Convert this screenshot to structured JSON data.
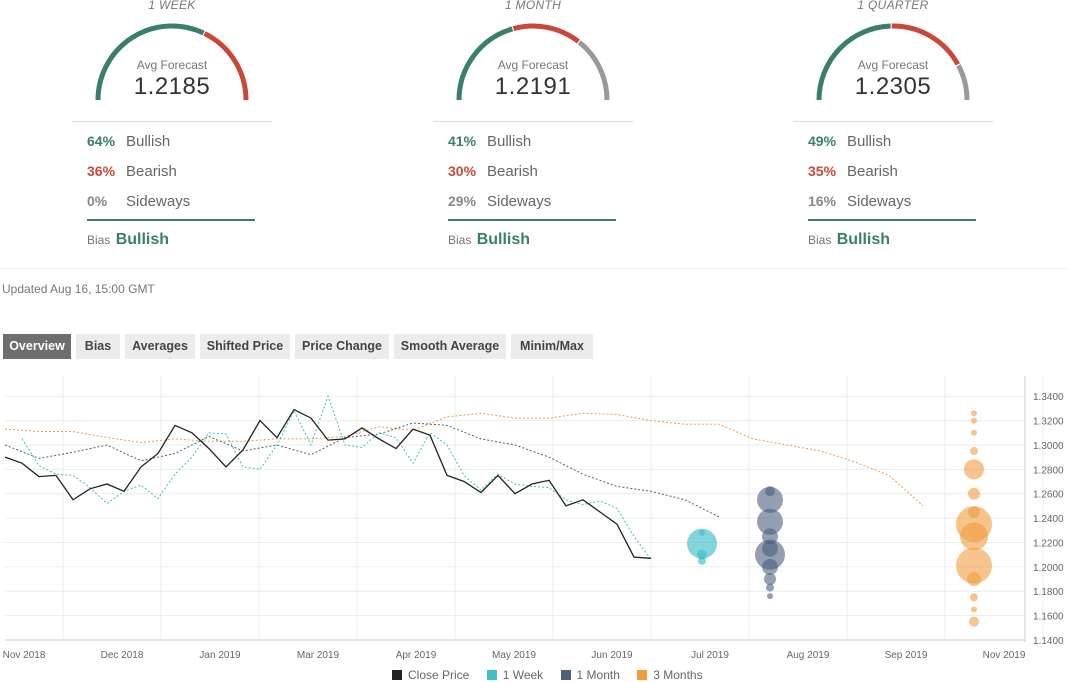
{
  "colors": {
    "bullish": "#3a7f6d",
    "bearish": "#c8493a",
    "sideways": "#999999",
    "close_price": "#222222",
    "week": "#3fbfc6",
    "month": "#4d5f7d",
    "quarter": "#f09d3f"
  },
  "forecasts": [
    {
      "period": "1 WEEK",
      "avg_label": "Avg Forecast",
      "avg_value": "1.2185",
      "gauge": [
        64,
        36,
        0
      ],
      "bullish_pct": "64%",
      "bullish_label": "Bullish",
      "bearish_pct": "36%",
      "bearish_label": "Bearish",
      "sideways_pct": "0%",
      "sideways_label": "Sideways",
      "bias_label": "Bias",
      "bias_value": "Bullish"
    },
    {
      "period": "1 MONTH",
      "avg_label": "Avg Forecast",
      "avg_value": "1.2191",
      "gauge": [
        41,
        30,
        29
      ],
      "bullish_pct": "41%",
      "bullish_label": "Bullish",
      "bearish_pct": "30%",
      "bearish_label": "Bearish",
      "sideways_pct": "29%",
      "sideways_label": "Sideways",
      "bias_label": "Bias",
      "bias_value": "Bullish"
    },
    {
      "period": "1 QUARTER",
      "avg_label": "Avg Forecast",
      "avg_value": "1.2305",
      "gauge": [
        49,
        35,
        16
      ],
      "bullish_pct": "49%",
      "bullish_label": "Bullish",
      "bearish_pct": "35%",
      "bearish_label": "Bearish",
      "sideways_pct": "16%",
      "sideways_label": "Sideways",
      "bias_label": "Bias",
      "bias_value": "Bullish"
    }
  ],
  "updated": "Updated Aug 16, 15:00 GMT",
  "tabs": [
    {
      "label": "Overview",
      "active": true
    },
    {
      "label": "Bias",
      "active": false
    },
    {
      "label": "Averages",
      "active": false
    },
    {
      "label": "Shifted Price",
      "active": false
    },
    {
      "label": "Price Change",
      "active": false
    },
    {
      "label": "Smooth Average",
      "active": false
    },
    {
      "label": "Minim/Max",
      "active": false
    }
  ],
  "chart_data": {
    "type": "line",
    "x_ticks": [
      "Nov 2018",
      "Dec 2018",
      "Jan 2019",
      "Mar 2019",
      "Apr 2019",
      "May 2019",
      "Jun 2019",
      "Jul 2019",
      "Aug 2019",
      "Sep 2019",
      "Nov 2019"
    ],
    "y_ticks": [
      "1.3400",
      "1.3200",
      "1.3000",
      "1.2800",
      "1.2600",
      "1.2400",
      "1.2200",
      "1.2000",
      "1.1800",
      "1.1600",
      "1.1400"
    ],
    "ylim": [
      1.14,
      1.35
    ],
    "grid": true,
    "legend_position": "bottom",
    "series": [
      {
        "name": "Close Price",
        "style": "solid",
        "x": [
          0,
          1,
          2,
          3,
          4,
          5,
          6,
          7,
          8,
          9,
          10,
          11,
          12,
          13,
          14,
          15,
          16,
          17,
          18,
          19,
          20,
          21,
          22,
          23,
          24,
          25,
          26,
          27,
          28,
          29,
          30,
          31,
          32,
          33,
          34,
          35,
          36,
          37,
          38
        ],
        "y": [
          1.29,
          1.285,
          1.274,
          1.275,
          1.255,
          1.264,
          1.268,
          1.262,
          1.282,
          1.293,
          1.316,
          1.31,
          1.297,
          1.282,
          1.296,
          1.32,
          1.306,
          1.329,
          1.322,
          1.304,
          1.305,
          1.314,
          1.305,
          1.297,
          1.313,
          1.308,
          1.275,
          1.27,
          1.261,
          1.275,
          1.26,
          1.268,
          1.271,
          1.25,
          1.255,
          1.245,
          1.235,
          1.208,
          1.207
        ]
      },
      {
        "name": "1 Week",
        "style": "dashed",
        "x": [
          1,
          2,
          3,
          4,
          5,
          6,
          7,
          8,
          9,
          10,
          11,
          12,
          13,
          14,
          15,
          16,
          17,
          18,
          19,
          20,
          21,
          22,
          23,
          24,
          25,
          26,
          27,
          28,
          29,
          30,
          31,
          32,
          33,
          34,
          35,
          36,
          37,
          38
        ],
        "y": [
          1.305,
          1.283,
          1.276,
          1.275,
          1.265,
          1.252,
          1.262,
          1.267,
          1.256,
          1.276,
          1.29,
          1.31,
          1.309,
          1.282,
          1.28,
          1.3,
          1.328,
          1.3,
          1.34,
          1.3,
          1.298,
          1.31,
          1.306,
          1.285,
          1.31,
          1.3,
          1.275,
          1.263,
          1.276,
          1.268,
          1.266,
          1.265,
          1.255,
          1.251,
          1.254,
          1.248,
          1.225,
          1.206
        ]
      },
      {
        "name": "1 Month",
        "style": "dashed",
        "x": [
          0,
          2,
          4,
          6,
          8,
          10,
          12,
          14,
          16,
          18,
          20,
          22,
          24,
          26,
          28,
          30,
          32,
          34,
          36,
          38,
          40,
          42
        ],
        "y": [
          1.3,
          1.289,
          1.294,
          1.3,
          1.287,
          1.293,
          1.307,
          1.295,
          1.3,
          1.292,
          1.306,
          1.309,
          1.318,
          1.316,
          1.305,
          1.3,
          1.29,
          1.276,
          1.266,
          1.262,
          1.255,
          1.241
        ]
      },
      {
        "name": "3 Months",
        "style": "dashed",
        "x": [
          0,
          2,
          4,
          6,
          8,
          10,
          12,
          14,
          16,
          18,
          20,
          22,
          24,
          26,
          28,
          30,
          32,
          34,
          36,
          38,
          40,
          42,
          44,
          46,
          48,
          50,
          52,
          54
        ],
        "y": [
          1.313,
          1.311,
          1.311,
          1.306,
          1.302,
          1.305,
          1.303,
          1.303,
          1.305,
          1.305,
          1.307,
          1.315,
          1.312,
          1.323,
          1.326,
          1.322,
          1.322,
          1.326,
          1.325,
          1.32,
          1.317,
          1.317,
          1.305,
          1.3,
          1.295,
          1.286,
          1.275,
          1.25
        ]
      }
    ],
    "forecast_points": [
      {
        "series": "1 Week",
        "x": 41,
        "y": [
          1.219,
          1.21,
          1.205,
          1.228
        ],
        "size": [
          15,
          5,
          4,
          3
        ]
      },
      {
        "series": "1 Month",
        "x": 45,
        "y": [
          1.21,
          1.255,
          1.237,
          1.225,
          1.215,
          1.2,
          1.19,
          1.183,
          1.176,
          1.262
        ],
        "size": [
          15,
          13,
          13,
          8,
          8,
          8,
          6,
          4,
          3,
          5
        ]
      },
      {
        "series": "3 Months",
        "x": 57,
        "y": [
          1.235,
          1.201,
          1.225,
          1.28,
          1.26,
          1.245,
          1.19,
          1.175,
          1.165,
          1.155,
          1.295,
          1.31,
          1.32,
          1.326
        ],
        "size": [
          18,
          18,
          14,
          10,
          6,
          6,
          7,
          4,
          3,
          5,
          4,
          3,
          3,
          3
        ]
      }
    ],
    "x_range": [
      0,
      60
    ]
  },
  "legend": [
    {
      "label": "Close Price"
    },
    {
      "label": "1 Week"
    },
    {
      "label": "1 Month"
    },
    {
      "label": "3 Months"
    }
  ]
}
